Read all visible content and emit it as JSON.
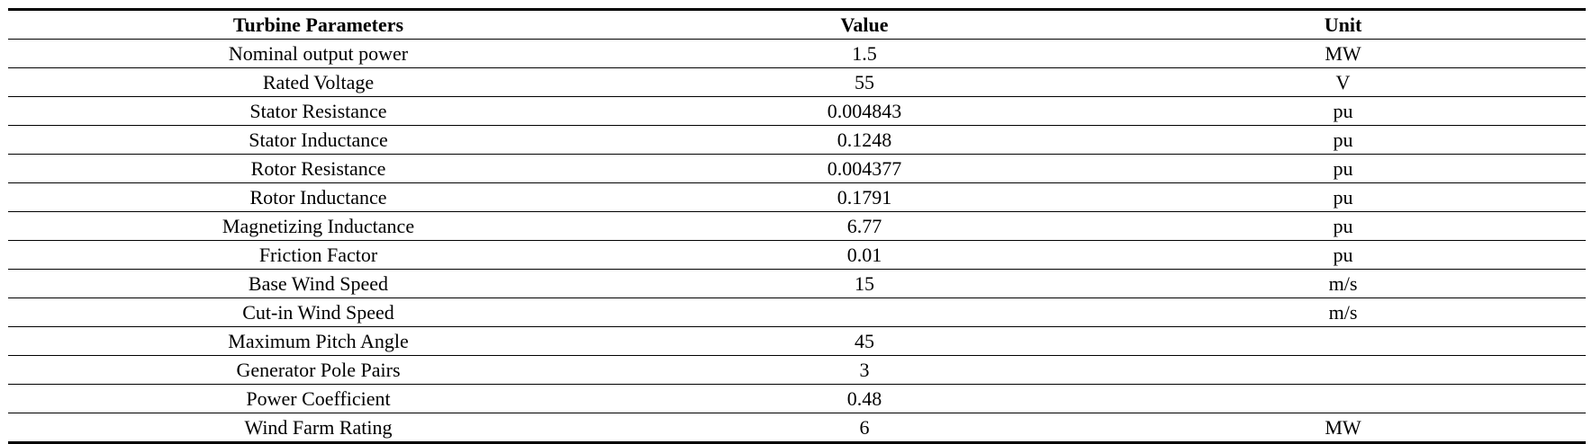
{
  "table": {
    "headers": {
      "parameter": "Turbine Parameters",
      "value": "Value",
      "unit": "Unit"
    },
    "rows": [
      {
        "parameter": "Nominal output power",
        "value": "1.5",
        "unit": "MW"
      },
      {
        "parameter": "Rated Voltage",
        "value": "55",
        "unit": "V"
      },
      {
        "parameter": "Stator Resistance",
        "value": "0.004843",
        "unit": "pu"
      },
      {
        "parameter": "Stator Inductance",
        "value": "0.1248",
        "unit": "pu"
      },
      {
        "parameter": "Rotor Resistance",
        "value": "0.004377",
        "unit": "pu"
      },
      {
        "parameter": "Rotor Inductance",
        "value": "0.1791",
        "unit": "pu"
      },
      {
        "parameter": "Magnetizing Inductance",
        "value": "6.77",
        "unit": "pu"
      },
      {
        "parameter": "Friction Factor",
        "value": "0.01",
        "unit": "pu"
      },
      {
        "parameter": "Base Wind Speed",
        "value": "15",
        "unit": "m/s"
      },
      {
        "parameter": "Cut-in Wind Speed",
        "value": "",
        "unit": "m/s"
      },
      {
        "parameter": "Maximum Pitch Angle",
        "value": "45",
        "unit": ""
      },
      {
        "parameter": "Generator Pole Pairs",
        "value": "3",
        "unit": ""
      },
      {
        "parameter": "Power Coefficient",
        "value": "0.48",
        "unit": ""
      },
      {
        "parameter": "Wind Farm Rating",
        "value": "6",
        "unit": "MW"
      }
    ]
  }
}
